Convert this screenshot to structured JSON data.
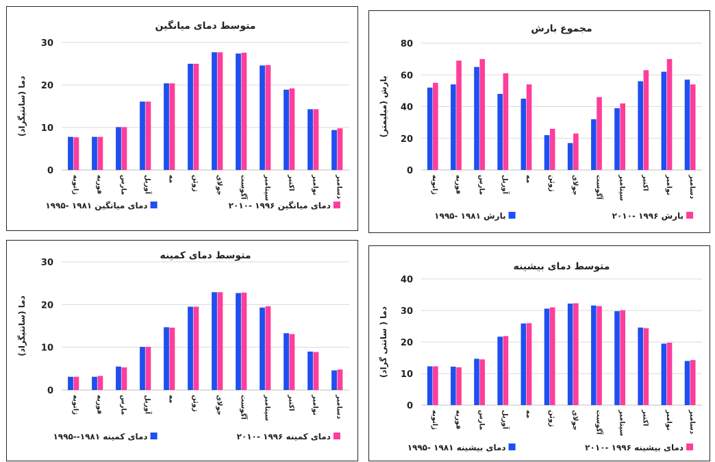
{
  "months": [
    "ژانویه",
    "فوریه",
    "مارس",
    "آوریل",
    "مه",
    "ژوئن",
    "جولای",
    "آگوست",
    "سپتامبر",
    "اکتبر",
    "نوامبر",
    "دسامبر"
  ],
  "colors": {
    "series1": "#1f4ff0",
    "series2": "#ff3d9a"
  },
  "chart_data": [
    {
      "id": "mean",
      "type": "bar",
      "title": "متوسط دمای میانگین",
      "ylabel": "دما (سانتیگراد)",
      "xlabel": "",
      "ylim": [
        0,
        30
      ],
      "yticks": [
        0,
        10,
        20,
        30
      ],
      "grid": true,
      "legend_position": "bottom",
      "series": [
        {
          "name": "۱۹۹۵- ۱۹۸۱ دمای میانگین",
          "values": [
            7.8,
            7.8,
            10.1,
            16.1,
            20.4,
            25.0,
            27.7,
            27.4,
            24.6,
            18.9,
            14.3,
            9.4
          ]
        },
        {
          "name": "۲۰۱۰- ۱۹۹۶ دمای میانگین",
          "values": [
            7.7,
            7.8,
            10.1,
            16.1,
            20.4,
            25.0,
            27.7,
            27.6,
            24.7,
            19.2,
            14.3,
            9.8
          ]
        }
      ]
    },
    {
      "id": "precip",
      "type": "bar",
      "title": "مجموع بارش",
      "ylabel": "بارش (میلیمتر)",
      "xlabel": "",
      "ylim": [
        0,
        80
      ],
      "yticks": [
        0,
        20,
        40,
        60,
        80
      ],
      "grid": true,
      "legend_position": "bottom",
      "series": [
        {
          "name": "۱۹۹۵- ۱۹۸۱ بارش",
          "values": [
            52,
            54,
            65,
            48,
            45,
            22,
            17,
            32,
            39,
            56,
            62,
            57
          ]
        },
        {
          "name": "۲۰۱۰- ۱۹۹۶ بارش",
          "values": [
            55,
            69,
            70,
            61,
            54,
            26,
            23,
            46,
            42,
            63,
            70,
            54
          ]
        }
      ]
    },
    {
      "id": "min",
      "type": "bar",
      "title": "متوسط دمای کمینه",
      "ylabel": "دما (سانتیگراد)",
      "xlabel": "",
      "ylim": [
        0,
        30
      ],
      "yticks": [
        0,
        10,
        20,
        30
      ],
      "grid": true,
      "legend_position": "bottom",
      "series": [
        {
          "name": "۱۹۹۵--۱۹۸۱ دمای کمینه",
          "values": [
            3.1,
            3.1,
            5.5,
            10.1,
            14.7,
            19.5,
            22.9,
            22.7,
            19.3,
            13.3,
            9.0,
            4.6
          ]
        },
        {
          "name": "۲۰۱۰- ۱۹۹۶ دمای کمینه",
          "values": [
            3.1,
            3.3,
            5.3,
            10.1,
            14.6,
            19.5,
            22.9,
            22.8,
            19.6,
            13.1,
            8.9,
            4.8
          ]
        }
      ]
    },
    {
      "id": "max",
      "type": "bar",
      "title": "متوسط دمای بیشینه",
      "ylabel": "دما ( سانتی گراد)",
      "xlabel": "",
      "ylim": [
        0,
        40
      ],
      "yticks": [
        0,
        10,
        20,
        30,
        40
      ],
      "grid": true,
      "legend_position": "bottom",
      "series": [
        {
          "name": "۱۹۹۵- ۱۹۸۱ دمای بیشینه",
          "values": [
            12.3,
            12.2,
            14.7,
            21.7,
            25.9,
            30.6,
            32.2,
            31.6,
            29.8,
            24.6,
            19.5,
            14.0
          ]
        },
        {
          "name": "۲۰۱۰- ۱۹۹۶ دمای بیشینه",
          "values": [
            12.3,
            12.0,
            14.5,
            21.9,
            26.0,
            31.0,
            32.3,
            31.4,
            30.1,
            24.4,
            19.8,
            14.3
          ]
        }
      ]
    }
  ]
}
